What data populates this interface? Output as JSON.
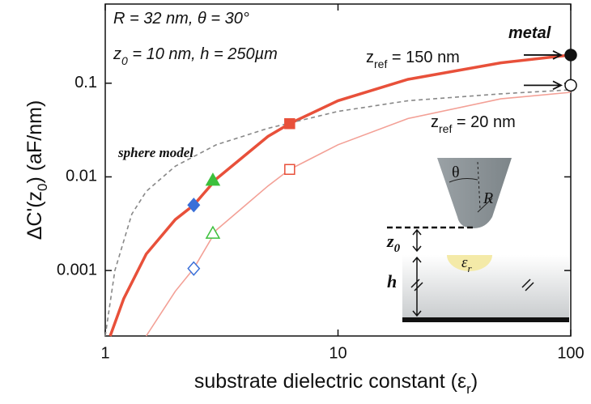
{
  "chart_data": {
    "type": "line",
    "xscale": "log",
    "yscale": "log",
    "xlim": [
      1,
      100
    ],
    "ylim": [
      0.0002,
      0.7
    ],
    "xticks": [
      1,
      10,
      100
    ],
    "yticks": [
      0.001,
      0.01,
      0.1
    ],
    "xlabel": [
      "substrate dielectric constant  (ε",
      {
        "sub": "r"
      },
      ")"
    ],
    "ylabel": [
      "ΔC'(z",
      {
        "sub": "0"
      },
      ")  (aF/nm)"
    ],
    "series": [
      {
        "color": "#e8503a",
        "dash": false,
        "x": [
          1.05,
          1.2,
          1.5,
          2,
          2.4,
          3,
          5,
          6.2,
          10,
          20,
          50,
          100
        ],
        "values": [
          0.0002,
          0.0005,
          0.0015,
          0.0035,
          0.005,
          0.0095,
          0.027,
          0.037,
          0.065,
          0.11,
          0.165,
          0.2
        ]
      },
      {
        "color": "#f3a096",
        "dash": false,
        "x": [
          1.5,
          2,
          2.4,
          3,
          5,
          6.2,
          10,
          20,
          50,
          100
        ],
        "values": [
          0.0002,
          0.0006,
          0.00105,
          0.0027,
          0.008,
          0.012,
          0.022,
          0.042,
          0.068,
          0.08
        ]
      },
      {
        "color": "#888888",
        "dash": true,
        "x": [
          1,
          1.1,
          1.3,
          1.5,
          2,
          3,
          5,
          10,
          20,
          50,
          100
        ],
        "values": [
          0.0002,
          0.001,
          0.004,
          0.007,
          0.013,
          0.022,
          0.033,
          0.05,
          0.065,
          0.077,
          0.085
        ]
      }
    ],
    "markers": [
      {
        "x": 2.4,
        "y": 0.005,
        "shape": "diamond",
        "color": "#3a6fd8",
        "filled": true
      },
      {
        "x": 2.9,
        "y": 0.0092,
        "shape": "triangle",
        "color": "#3cc03c",
        "filled": true
      },
      {
        "x": 6.2,
        "y": 0.037,
        "shape": "square",
        "color": "#e8503a",
        "filled": true
      },
      {
        "x": 100,
        "y": 0.2,
        "shape": "circle",
        "color": "#111111",
        "filled": true
      },
      {
        "x": 2.4,
        "y": 0.00105,
        "shape": "diamond",
        "color": "#3a6fd8",
        "filled": false
      },
      {
        "x": 2.9,
        "y": 0.0025,
        "shape": "triangle",
        "color": "#3cc03c",
        "filled": false
      },
      {
        "x": 6.2,
        "y": 0.012,
        "shape": "square",
        "color": "#e8503a",
        "filled": false
      },
      {
        "x": 100,
        "y": 0.095,
        "shape": "circle",
        "color": "#111111",
        "filled": false
      }
    ],
    "annotations": [
      [
        "R = 32 nm, θ = 30°"
      ],
      [
        "z",
        {
          "sub": "0"
        },
        " = 10 nm, h = 250µm"
      ],
      [
        "metal"
      ],
      [
        "z",
        {
          "sub": "ref"
        },
        " = 150 nm"
      ],
      [
        "z",
        {
          "sub": "ref"
        },
        " = 20 nm"
      ],
      [
        "sphere model"
      ],
      [
        "θ"
      ],
      [
        "R"
      ],
      [
        "z",
        {
          "sub": "0"
        }
      ],
      [
        "ε",
        {
          "sub": "r"
        }
      ],
      [
        "h"
      ]
    ]
  }
}
